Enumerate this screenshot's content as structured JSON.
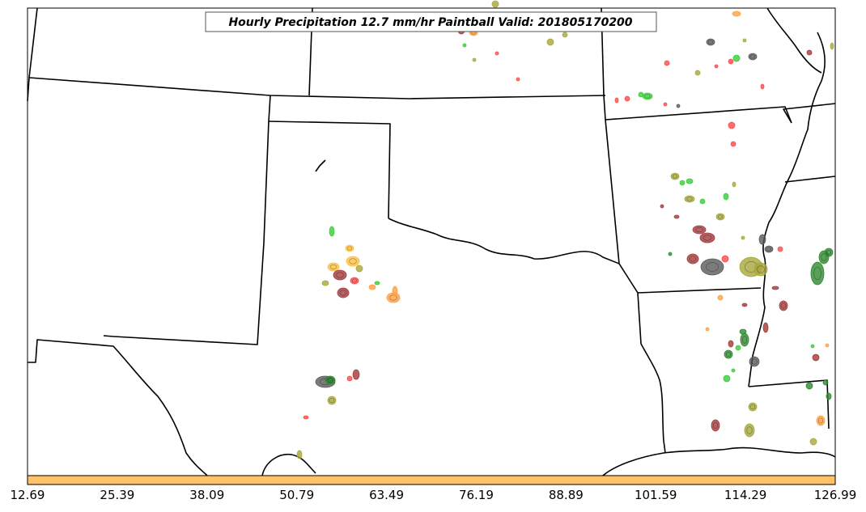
{
  "title": "Hourly Precipitation 12.7 mm/hr Paintball Valid: 201805170200",
  "colorbar": {
    "fill_color": "#ffc266",
    "tick_labels": [
      "12.69",
      "25.39",
      "38.09",
      "50.79",
      "63.49",
      "76.19",
      "88.89",
      "101.59",
      "114.29",
      "126.99"
    ]
  },
  "member_colors": [
    "#5a5a5a",
    "#a33a3a",
    "#ff4a4a",
    "#3acd3a",
    "#2f8a2f",
    "#a8a83a",
    "#ffa040",
    "#ffc040"
  ],
  "map": {
    "region": "Southern Plains / Lower Mississippi Valley",
    "blob_count_visible": "many"
  }
}
